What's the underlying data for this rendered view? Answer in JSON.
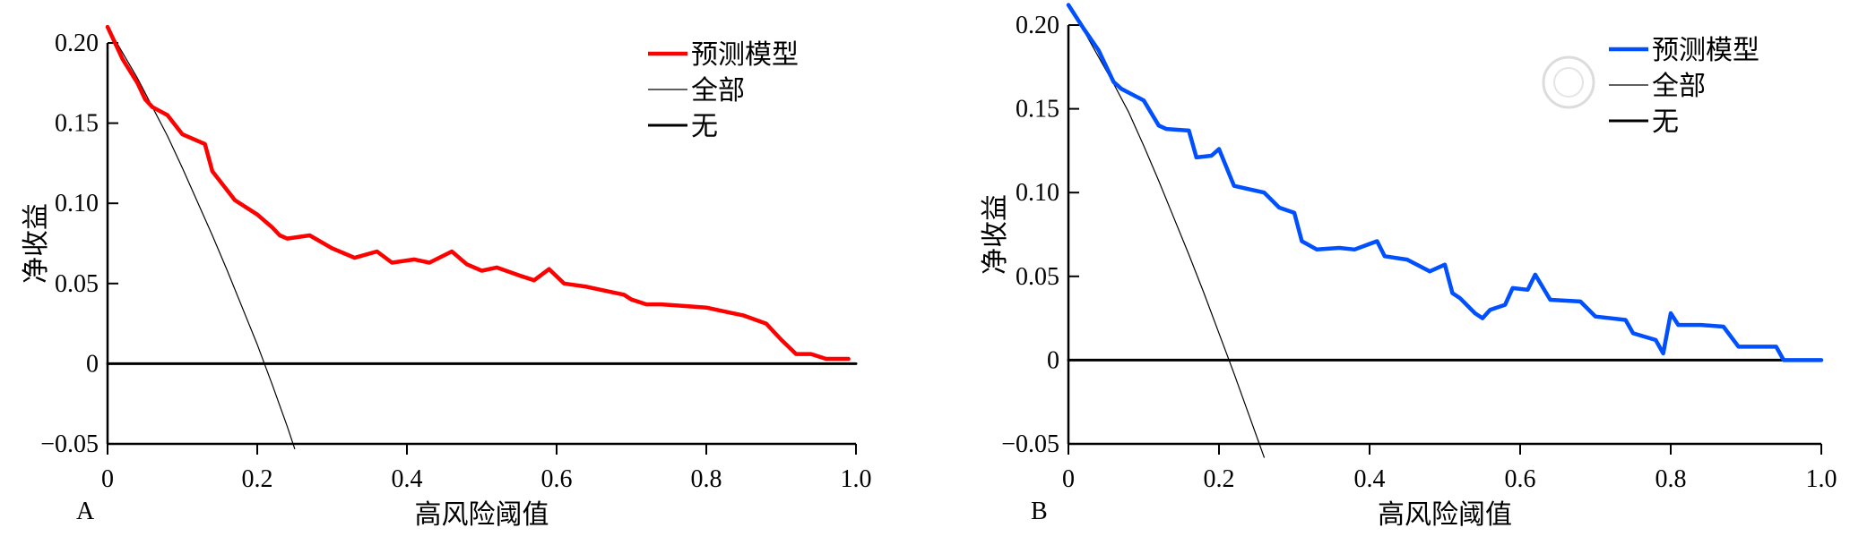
{
  "chart_data": [
    {
      "type": "line",
      "panel_label": "A",
      "xlabel": "高风险阈值",
      "ylabel": "净收益",
      "xlim": [
        0,
        1.0
      ],
      "ylim": [
        -0.05,
        0.2
      ],
      "x_ticks": [
        0,
        0.2,
        0.4,
        0.6,
        0.8,
        1.0
      ],
      "x_tick_labels": [
        "0",
        "0.2",
        "0.4",
        "0.6",
        "0.8",
        "1.0"
      ],
      "y_ticks": [
        -0.05,
        0,
        0.05,
        0.1,
        0.15,
        0.2
      ],
      "y_tick_labels": [
        "−0.05",
        "0",
        "0.05",
        "0.10",
        "0.15",
        "0.20"
      ],
      "legend_position": "top-right",
      "series": [
        {
          "name": "预测模型",
          "color": "#ff0000",
          "x": [
            0.0,
            0.02,
            0.04,
            0.05,
            0.06,
            0.08,
            0.1,
            0.13,
            0.14,
            0.17,
            0.2,
            0.22,
            0.23,
            0.24,
            0.27,
            0.3,
            0.33,
            0.36,
            0.38,
            0.41,
            0.43,
            0.46,
            0.48,
            0.5,
            0.52,
            0.55,
            0.57,
            0.59,
            0.61,
            0.64,
            0.67,
            0.69,
            0.7,
            0.72,
            0.74,
            0.77,
            0.8,
            0.83,
            0.85,
            0.88,
            0.9,
            0.92,
            0.94,
            0.96,
            0.99
          ],
          "y": [
            0.21,
            0.19,
            0.175,
            0.165,
            0.16,
            0.155,
            0.143,
            0.137,
            0.12,
            0.102,
            0.093,
            0.085,
            0.08,
            0.078,
            0.08,
            0.072,
            0.066,
            0.07,
            0.063,
            0.065,
            0.063,
            0.07,
            0.062,
            0.058,
            0.06,
            0.055,
            0.052,
            0.059,
            0.05,
            0.048,
            0.045,
            0.043,
            0.04,
            0.037,
            0.037,
            0.036,
            0.035,
            0.032,
            0.03,
            0.025,
            0.015,
            0.006,
            0.006,
            0.003,
            0.003
          ]
        },
        {
          "name": "全部",
          "color": "#000000",
          "x": [
            0.0,
            0.02,
            0.04,
            0.06,
            0.08,
            0.1,
            0.12,
            0.14,
            0.16,
            0.18,
            0.2,
            0.22,
            0.24,
            0.25
          ],
          "y": [
            0.21,
            0.194,
            0.178,
            0.16,
            0.142,
            0.122,
            0.101,
            0.08,
            0.058,
            0.035,
            0.012,
            -0.013,
            -0.039,
            -0.053
          ]
        },
        {
          "name": "无",
          "color": "#000000",
          "x": [
            0.0,
            1.0
          ],
          "y": [
            0.0,
            0.0
          ]
        }
      ]
    },
    {
      "type": "line",
      "panel_label": "B",
      "xlabel": "高风险阈值",
      "ylabel": "净收益",
      "xlim": [
        0,
        1.0
      ],
      "ylim": [
        -0.05,
        0.2
      ],
      "x_ticks": [
        0,
        0.2,
        0.4,
        0.6,
        0.8,
        1.0
      ],
      "x_tick_labels": [
        "0",
        "0.2",
        "0.4",
        "0.6",
        "0.8",
        "1.0"
      ],
      "y_ticks": [
        -0.05,
        0,
        0.05,
        0.1,
        0.15,
        0.2
      ],
      "y_tick_labels": [
        "−0.05",
        "0",
        "0.05",
        "0.10",
        "0.15",
        "0.20"
      ],
      "legend_position": "top-right",
      "series": [
        {
          "name": "预测模型",
          "color": "#0050ff",
          "x": [
            0.0,
            0.02,
            0.04,
            0.06,
            0.07,
            0.1,
            0.12,
            0.13,
            0.16,
            0.17,
            0.19,
            0.2,
            0.22,
            0.26,
            0.28,
            0.3,
            0.31,
            0.33,
            0.36,
            0.38,
            0.41,
            0.42,
            0.45,
            0.48,
            0.5,
            0.51,
            0.52,
            0.54,
            0.55,
            0.56,
            0.58,
            0.59,
            0.61,
            0.62,
            0.64,
            0.68,
            0.7,
            0.74,
            0.75,
            0.78,
            0.79,
            0.8,
            0.81,
            0.84,
            0.87,
            0.89,
            0.94,
            0.95,
            1.0
          ],
          "y": [
            0.212,
            0.198,
            0.185,
            0.166,
            0.162,
            0.155,
            0.14,
            0.138,
            0.137,
            0.121,
            0.122,
            0.126,
            0.104,
            0.1,
            0.091,
            0.088,
            0.071,
            0.066,
            0.067,
            0.066,
            0.071,
            0.062,
            0.06,
            0.053,
            0.057,
            0.04,
            0.037,
            0.028,
            0.025,
            0.03,
            0.033,
            0.043,
            0.042,
            0.051,
            0.036,
            0.035,
            0.026,
            0.024,
            0.016,
            0.012,
            0.004,
            0.028,
            0.021,
            0.021,
            0.02,
            0.008,
            0.008,
            0.0,
            0.0
          ]
        },
        {
          "name": "全部",
          "color": "#000000",
          "x": [
            0.0,
            0.02,
            0.04,
            0.06,
            0.08,
            0.1,
            0.12,
            0.14,
            0.16,
            0.18,
            0.2,
            0.22,
            0.24,
            0.26
          ],
          "y": [
            0.212,
            0.197,
            0.181,
            0.165,
            0.148,
            0.128,
            0.107,
            0.085,
            0.063,
            0.04,
            0.016,
            -0.008,
            -0.033,
            -0.058
          ]
        },
        {
          "name": "无",
          "color": "#000000",
          "x": [
            0.0,
            1.0
          ],
          "y": [
            0.0,
            0.0
          ]
        }
      ]
    }
  ],
  "legend_icons": [
    "red-line-swatch",
    "thin-black-line-swatch",
    "black-line-swatch",
    "blue-line-swatch"
  ]
}
